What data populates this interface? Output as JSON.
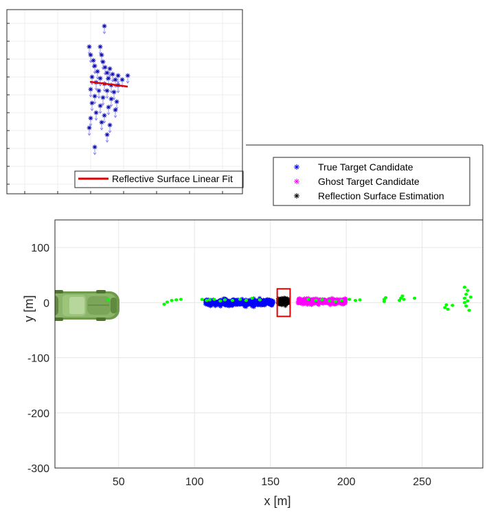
{
  "chart_data": [
    {
      "type": "scatter",
      "panel": "main",
      "xlabel": "x [m]",
      "ylabel": "y [m]",
      "xlim": [
        8,
        290
      ],
      "ylim": [
        -300,
        150
      ],
      "xticks": [
        50,
        100,
        150,
        200,
        250
      ],
      "yticks": [
        100,
        0,
        -100,
        -200,
        -300
      ],
      "grid": true,
      "legend_position": "top-right",
      "series": [
        {
          "name": "True Target Candidate",
          "marker": "asterisk",
          "color": "#0000ff",
          "clusters": [
            {
              "x_range": [
                107,
                152
              ],
              "y_center": 0,
              "y_spread": 10,
              "count": 520
            }
          ]
        },
        {
          "name": "Ghost Target Candidate",
          "marker": "asterisk",
          "color": "#ff00ff",
          "clusters": [
            {
              "x_range": [
                168,
                200
              ],
              "y_center": 2,
              "y_spread": 8,
              "count": 380
            }
          ]
        },
        {
          "name": "Reflection Surface Estimation",
          "marker": "asterisk",
          "color": "#000000",
          "clusters": [
            {
              "x_range": [
                155,
                162
              ],
              "y_center": 2,
              "y_spread": 9,
              "count": 140
            }
          ]
        },
        {
          "name": "",
          "marker": "dot",
          "color": "#00ff00",
          "points": [
            [
              43,
              5
            ],
            [
              80,
              -3
            ],
            [
              82,
              1
            ],
            [
              85,
              4
            ],
            [
              88,
              5
            ],
            [
              91,
              6
            ],
            [
              105,
              6
            ],
            [
              108,
              4
            ],
            [
              110,
              5
            ],
            [
              113,
              6
            ],
            [
              117,
              3
            ],
            [
              120,
              5
            ],
            [
              125,
              4
            ],
            [
              130,
              6
            ],
            [
              134,
              4
            ],
            [
              138,
              8
            ],
            [
              143,
              5
            ],
            [
              175,
              6
            ],
            [
              180,
              4
            ],
            [
              184,
              5
            ],
            [
              189,
              3
            ],
            [
              193,
              2
            ],
            [
              197,
              4
            ],
            [
              202,
              6
            ],
            [
              206,
              4
            ],
            [
              209,
              5
            ],
            [
              225,
              2
            ],
            [
              225,
              6
            ],
            [
              226,
              9
            ],
            [
              235,
              4
            ],
            [
              236,
              8
            ],
            [
              237,
              12
            ],
            [
              238,
              6
            ],
            [
              245,
              8
            ],
            [
              265,
              -9
            ],
            [
              266,
              -4
            ],
            [
              267,
              -12
            ],
            [
              270,
              -5
            ],
            [
              278,
              0
            ],
            [
              278,
              8
            ],
            [
              279,
              15
            ],
            [
              279,
              -6
            ],
            [
              280,
              3
            ],
            [
              280,
              22
            ],
            [
              281,
              -14
            ],
            [
              282,
              10
            ],
            [
              278,
              28
            ]
          ]
        }
      ],
      "highlight_box": {
        "x": [
          154.5,
          163
        ],
        "y": [
          -25,
          25
        ],
        "color": "#e00000"
      }
    },
    {
      "type": "scatter",
      "panel": "inset",
      "grid": true,
      "legend_position": "bottom-right",
      "series": [
        {
          "name": "",
          "marker": "asterisk-with-arrow",
          "color": "#0000aa",
          "points": [
            [
              152,
              38
            ],
            [
              130,
              68
            ],
            [
              146,
              68
            ],
            [
              132,
              80
            ],
            [
              148,
              80
            ],
            [
              136,
              88
            ],
            [
              150,
              90
            ],
            [
              138,
              96
            ],
            [
              153,
              98
            ],
            [
              160,
              100
            ],
            [
              142,
              104
            ],
            [
              156,
              106
            ],
            [
              164,
              108
            ],
            [
              172,
              110
            ],
            [
              186,
              110
            ],
            [
              134,
              112
            ],
            [
              146,
              114
            ],
            [
              158,
              114
            ],
            [
              168,
              116
            ],
            [
              178,
              116
            ],
            [
              140,
              120
            ],
            [
              152,
              122
            ],
            [
              162,
              124
            ],
            [
              172,
              124
            ],
            [
              132,
              130
            ],
            [
              144,
              132
            ],
            [
              156,
              132
            ],
            [
              166,
              134
            ],
            [
              138,
              140
            ],
            [
              150,
              142
            ],
            [
              162,
              144
            ],
            [
              170,
              148
            ],
            [
              134,
              150
            ],
            [
              146,
              154
            ],
            [
              158,
              156
            ],
            [
              168,
              160
            ],
            [
              140,
              164
            ],
            [
              152,
              168
            ],
            [
              132,
              172
            ],
            [
              148,
              178
            ],
            [
              160,
              182
            ],
            [
              130,
              186
            ],
            [
              156,
              196
            ],
            [
              138,
              214
            ]
          ]
        },
        {
          "name": "Reflective Surface Linear Fit",
          "marker": "line",
          "color": "#e00000",
          "points": [
            [
              131,
              119
            ],
            [
              186,
              126
            ]
          ]
        }
      ]
    }
  ],
  "legend_main": {
    "items": [
      {
        "label": "True Target Candidate",
        "color": "#0000ff"
      },
      {
        "label": "Ghost Target Candidate",
        "color": "#ff00ff"
      },
      {
        "label": "Reflection Surface Estimation",
        "color": "#000000"
      }
    ]
  },
  "legend_inset": {
    "label": "Reflective Surface Linear Fit",
    "color": "#e00000"
  },
  "icons": {
    "vehicle": "car-icon"
  }
}
